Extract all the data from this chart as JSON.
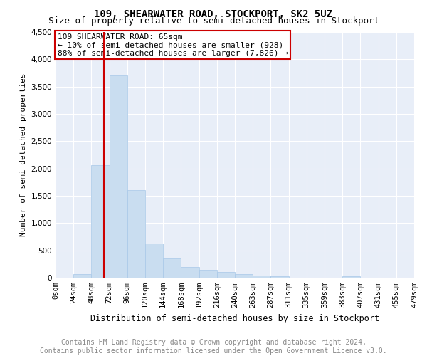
{
  "title": "109, SHEARWATER ROAD, STOCKPORT, SK2 5UZ",
  "subtitle": "Size of property relative to semi-detached houses in Stockport",
  "xlabel": "Distribution of semi-detached houses by size in Stockport",
  "ylabel": "Number of semi-detached properties",
  "annotation_line1": "109 SHEARWATER ROAD: 65sqm",
  "annotation_line2": "← 10% of semi-detached houses are smaller (928)",
  "annotation_line3": "88% of semi-detached houses are larger (7,826) →",
  "property_size_sqm": 65,
  "bin_size": 24,
  "bar_color": "#c9ddf0",
  "bar_edge_color": "#a8c8e8",
  "marker_color": "#cc0000",
  "annotation_box_edgecolor": "#cc0000",
  "background_color": "#ffffff",
  "plot_bg_color": "#e8eef8",
  "categories": [
    "0sqm",
    "24sqm",
    "48sqm",
    "72sqm",
    "96sqm",
    "120sqm",
    "144sqm",
    "168sqm",
    "192sqm",
    "216sqm",
    "240sqm",
    "263sqm",
    "287sqm",
    "311sqm",
    "335sqm",
    "359sqm",
    "383sqm",
    "407sqm",
    "431sqm",
    "455sqm",
    "479sqm"
  ],
  "values": [
    0,
    60,
    2060,
    3700,
    1600,
    630,
    350,
    200,
    150,
    100,
    60,
    40,
    30,
    0,
    0,
    0,
    30,
    0,
    0,
    0
  ],
  "ylim": [
    0,
    4500
  ],
  "yticks": [
    0,
    500,
    1000,
    1500,
    2000,
    2500,
    3000,
    3500,
    4000,
    4500
  ],
  "grid_color": "#ffffff",
  "footnote_line1": "Contains HM Land Registry data © Crown copyright and database right 2024.",
  "footnote_line2": "Contains public sector information licensed under the Open Government Licence v3.0.",
  "title_fontsize": 10,
  "subtitle_fontsize": 9,
  "ylabel_fontsize": 8,
  "xlabel_fontsize": 8.5,
  "annotation_fontsize": 8,
  "tick_fontsize": 7.5,
  "footnote_fontsize": 7
}
